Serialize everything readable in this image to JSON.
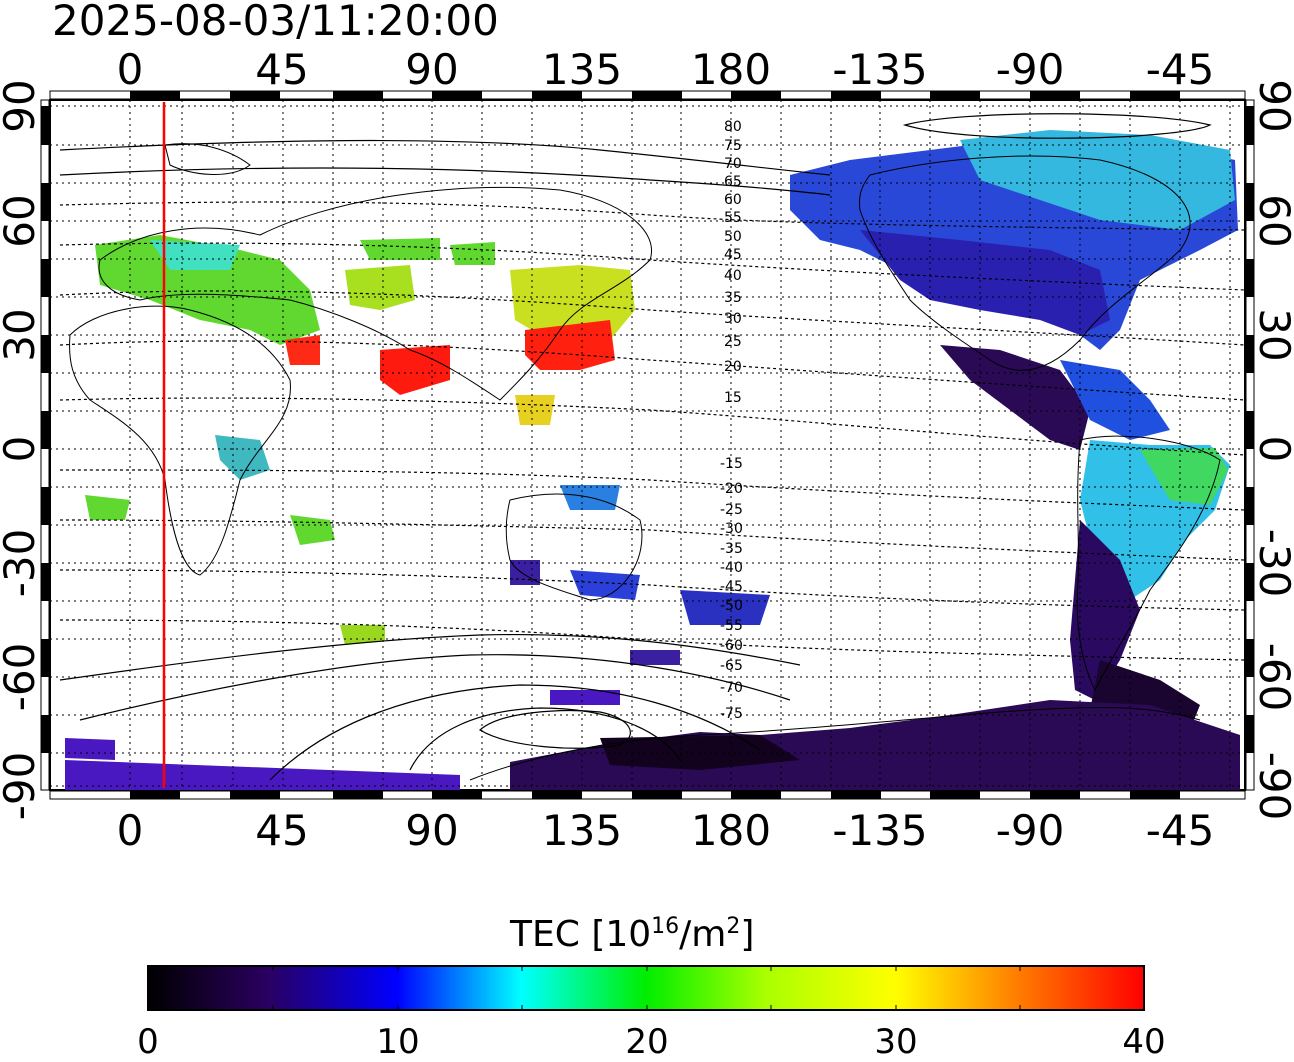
{
  "timestamp": "2025-08-03/11:20:00",
  "map": {
    "lon_ticks_top": [
      "0",
      "45",
      "90",
      "135",
      "180",
      "-135",
      "-90",
      "-45"
    ],
    "lon_ticks_bottom": [
      "0",
      "45",
      "90",
      "135",
      "180",
      "-135",
      "-90",
      "-45"
    ],
    "lat_ticks_left": [
      "90",
      "60",
      "30",
      "0",
      "-30",
      "-60",
      "-90"
    ],
    "lat_ticks_right": [
      "90",
      "60",
      "30",
      "0",
      "-30",
      "-60",
      "-90"
    ],
    "contour_labels_north": [
      "80",
      "75",
      "70",
      "65",
      "60",
      "55",
      "50",
      "45",
      "40",
      "35",
      "30",
      "25",
      "20",
      "15"
    ],
    "contour_labels_south": [
      "-15",
      "-20",
      "-25",
      "-30",
      "-35",
      "-40",
      "-45",
      "-50",
      "-55",
      "-60",
      "-65",
      "-70",
      "-75"
    ],
    "terminator_line_color": "#ff0000",
    "grid": "dotted"
  },
  "colorbar": {
    "title_prefix": "TEC  [10",
    "title_exp1": "16",
    "title_mid": "/m",
    "title_exp2": "2",
    "title_suffix": "]",
    "labels": [
      "0",
      "10",
      "20",
      "30",
      "40"
    ],
    "range": [
      0,
      40
    ],
    "colors": [
      "#000000",
      "#3a0070",
      "#0000ff",
      "#00ffff",
      "#00ff00",
      "#ffff00",
      "#ff8000",
      "#ff0000"
    ]
  }
}
